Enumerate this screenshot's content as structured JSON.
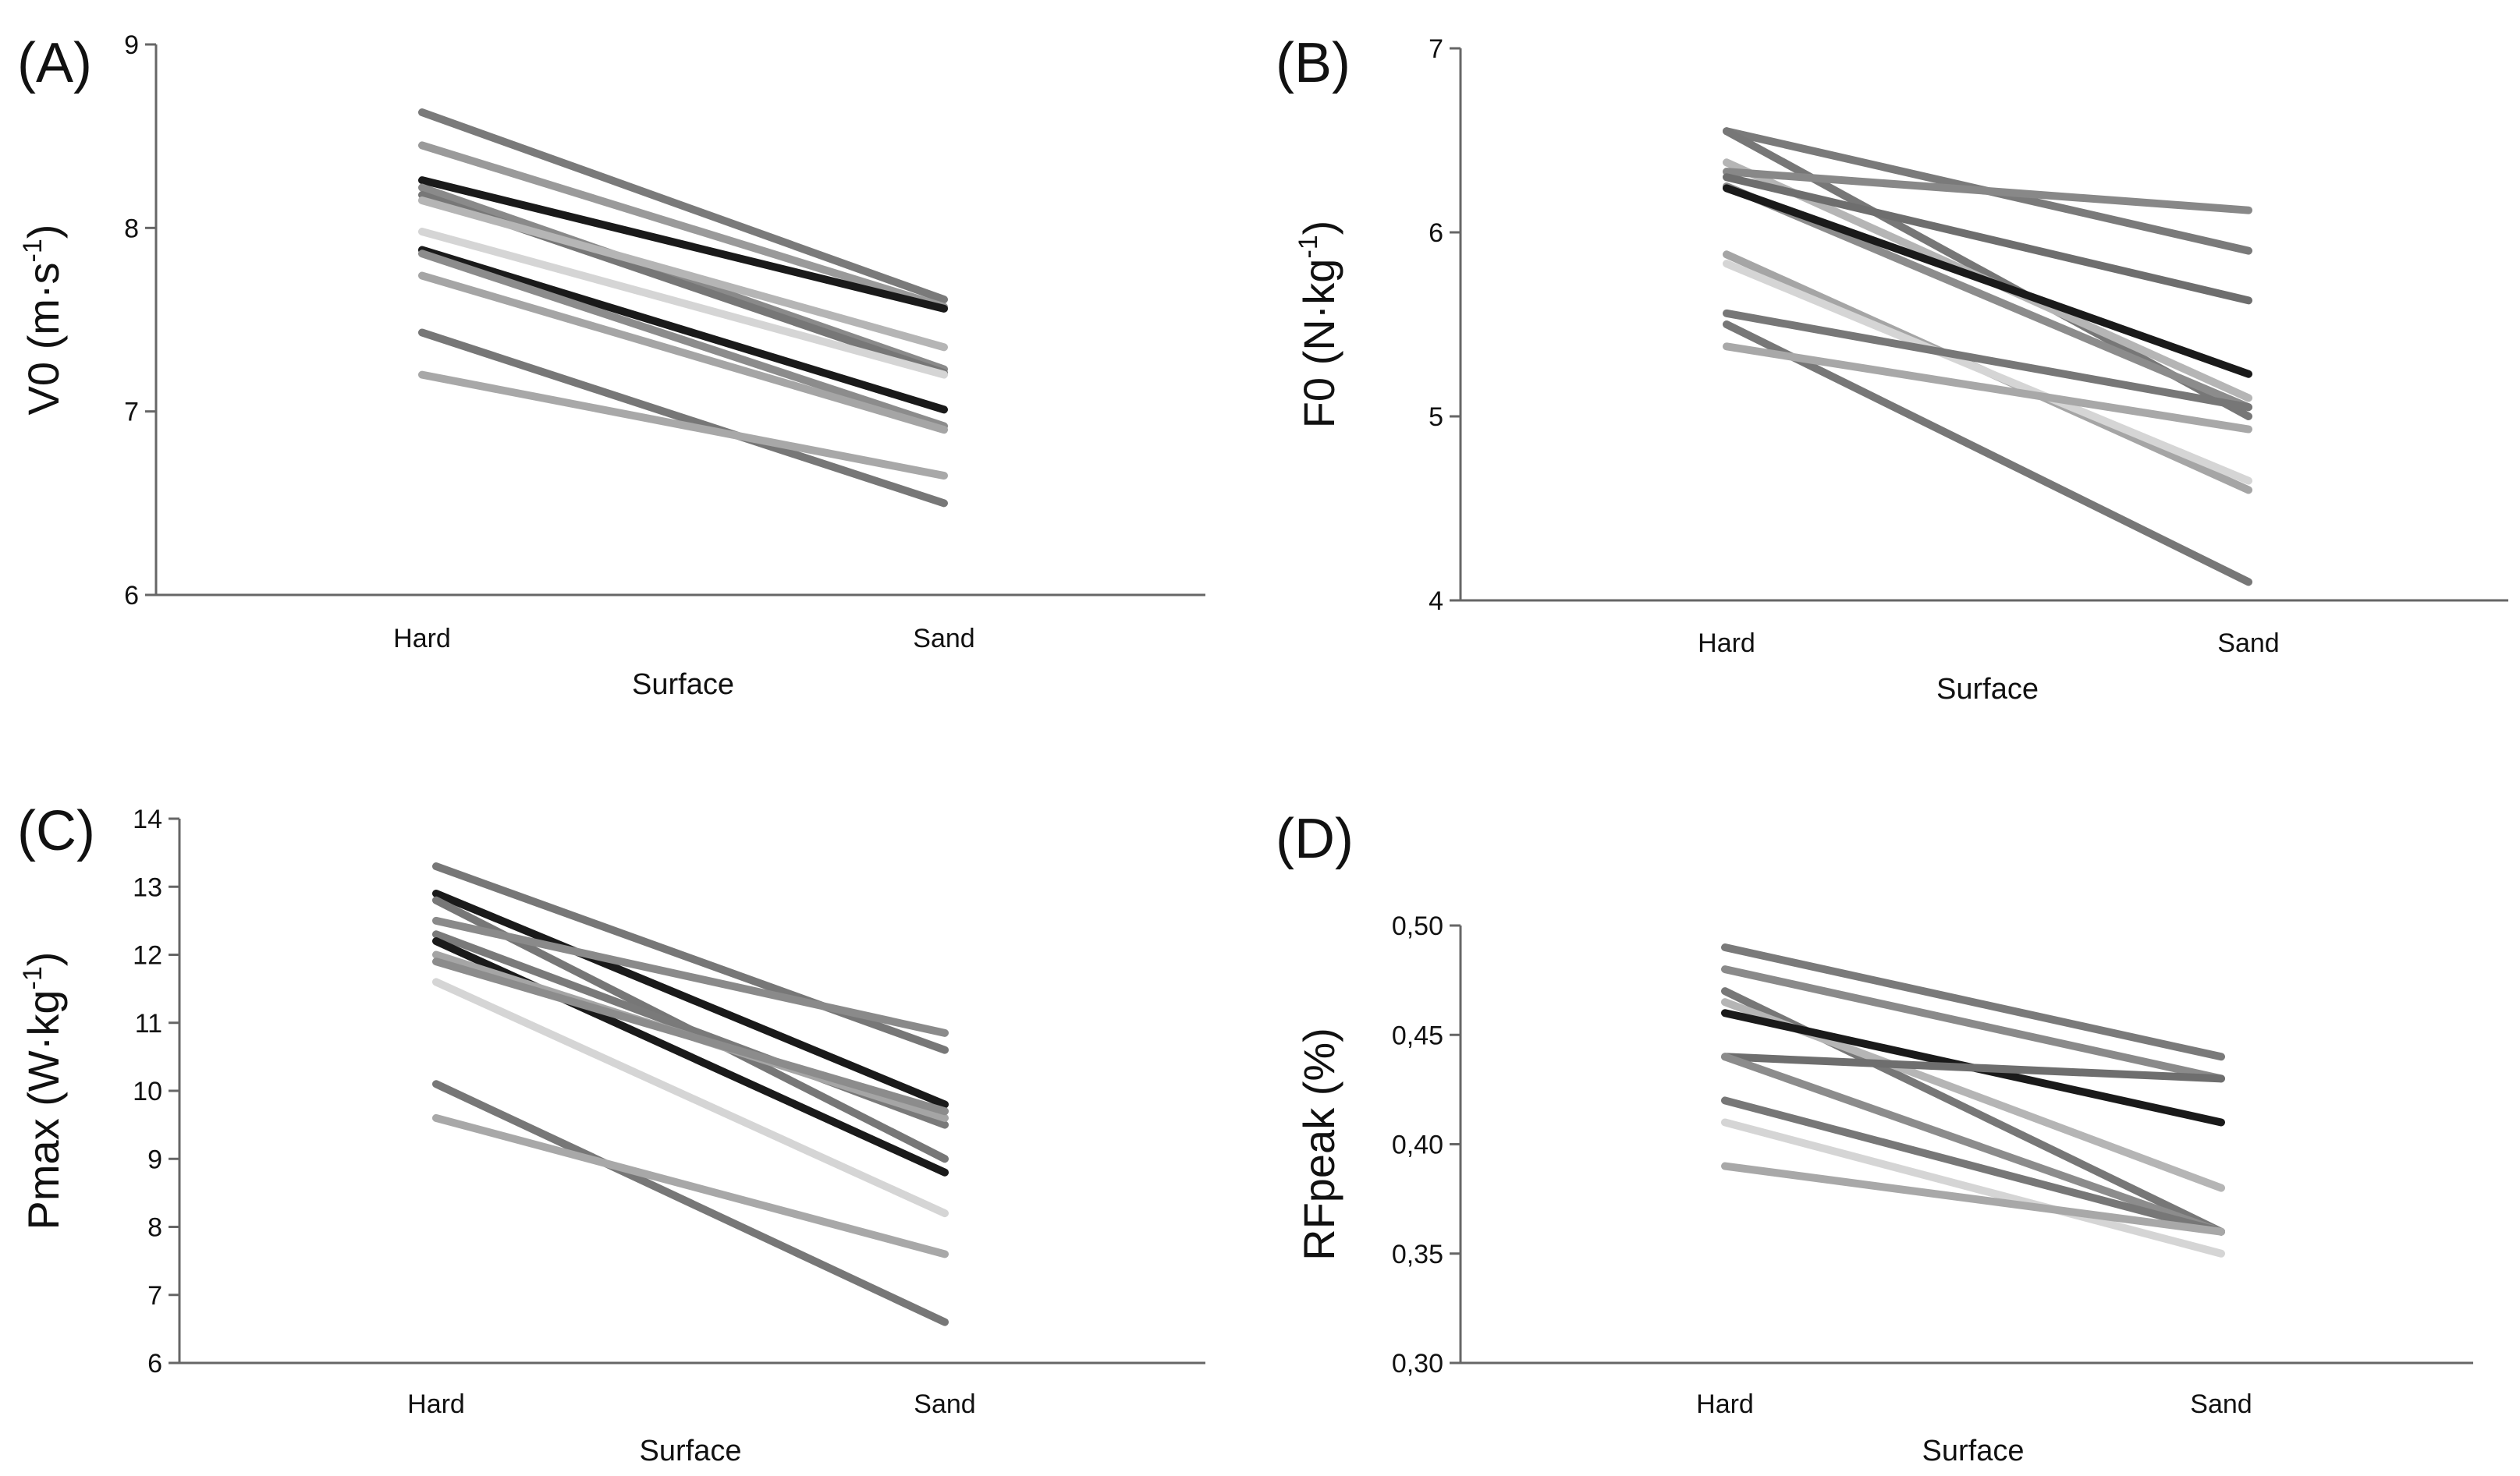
{
  "chart_data": [
    {
      "type": "line",
      "panel_label": "(A)",
      "ylabel": "V0 (m·s",
      "ylabel_sup": "-1",
      "ylabel_end": ")",
      "xlabel": "Surface",
      "categories": [
        "Hard",
        "Sand"
      ],
      "ylim": [
        6,
        9
      ],
      "yticks": [
        "6",
        "7",
        "8",
        "9"
      ],
      "ytick_values": [
        6,
        7,
        8,
        9
      ],
      "series": [
        {
          "values": [
            8.63,
            7.61
          ],
          "color": "#7a7a7a"
        },
        {
          "values": [
            8.45,
            7.57
          ],
          "color": "#9a9a9a"
        },
        {
          "values": [
            8.26,
            7.56
          ],
          "color": "#1a1a1a"
        },
        {
          "values": [
            8.22,
            7.23
          ],
          "color": "#8a8a8a"
        },
        {
          "values": [
            8.18,
            7.21
          ],
          "color": "#777777"
        },
        {
          "values": [
            8.15,
            7.35
          ],
          "color": "#b5b5b5"
        },
        {
          "values": [
            7.98,
            7.2
          ],
          "color": "#d5d5d5"
        },
        {
          "values": [
            7.88,
            7.01
          ],
          "color": "#1a1a1a"
        },
        {
          "values": [
            7.86,
            6.92
          ],
          "color": "#8c8c8c"
        },
        {
          "values": [
            7.74,
            6.9
          ],
          "color": "#a5a5a5"
        },
        {
          "values": [
            7.43,
            6.5
          ],
          "color": "#777777"
        },
        {
          "values": [
            7.2,
            6.65
          ],
          "color": "#a8a8a8"
        }
      ]
    },
    {
      "type": "line",
      "panel_label": "(B)",
      "ylabel": "F0 (N·kg",
      "ylabel_sup": "-1",
      "ylabel_end": ")",
      "xlabel": "Surface",
      "categories": [
        "Hard",
        "Sand"
      ],
      "ylim": [
        4,
        7
      ],
      "yticks": [
        "4",
        "5",
        "6",
        "7"
      ],
      "ytick_values": [
        4,
        5,
        6,
        7
      ],
      "series": [
        {
          "values": [
            6.55,
            5.9
          ],
          "color": "#7a7a7a"
        },
        {
          "values": [
            6.55,
            5.0
          ],
          "color": "#777777"
        },
        {
          "values": [
            6.38,
            5.1
          ],
          "color": "#b5b5b5"
        },
        {
          "values": [
            6.33,
            6.12
          ],
          "color": "#888888"
        },
        {
          "values": [
            6.3,
            5.63
          ],
          "color": "#6e6e6e"
        },
        {
          "values": [
            6.25,
            5.05
          ],
          "color": "#8c8c8c"
        },
        {
          "values": [
            6.24,
            5.23
          ],
          "color": "#1a1a1a"
        },
        {
          "values": [
            5.88,
            4.6
          ],
          "color": "#a5a5a5"
        },
        {
          "values": [
            5.83,
            4.65
          ],
          "color": "#d5d5d5"
        },
        {
          "values": [
            5.56,
            5.05
          ],
          "color": "#777777"
        },
        {
          "values": [
            5.5,
            4.1
          ],
          "color": "#777777"
        },
        {
          "values": [
            5.38,
            4.93
          ],
          "color": "#a8a8a8"
        }
      ]
    },
    {
      "type": "line",
      "panel_label": "(C)",
      "ylabel": "Pmax (W·kg",
      "ylabel_sup": "-1",
      "ylabel_end": ")",
      "xlabel": "Surface",
      "categories": [
        "Hard",
        "Sand"
      ],
      "ylim": [
        6,
        14
      ],
      "yticks": [
        "6",
        "7",
        "8",
        "9",
        "10",
        "11",
        "12",
        "13",
        "14"
      ],
      "ytick_values": [
        6,
        7,
        8,
        9,
        10,
        11,
        12,
        13,
        14
      ],
      "series": [
        {
          "values": [
            13.3,
            10.6
          ],
          "color": "#777777"
        },
        {
          "values": [
            12.9,
            9.8
          ],
          "color": "#1a1a1a"
        },
        {
          "values": [
            12.8,
            9.0
          ],
          "color": "#777777"
        },
        {
          "values": [
            12.5,
            10.85
          ],
          "color": "#8a8a8a"
        },
        {
          "values": [
            12.3,
            9.5
          ],
          "color": "#7a7a7a"
        },
        {
          "values": [
            12.2,
            8.8
          ],
          "color": "#1a1a1a"
        },
        {
          "values": [
            12.0,
            9.6
          ],
          "color": "#a5a5a5"
        },
        {
          "values": [
            11.9,
            9.7
          ],
          "color": "#8c8c8c"
        },
        {
          "values": [
            11.6,
            8.2
          ],
          "color": "#d5d5d5"
        },
        {
          "values": [
            10.1,
            6.6
          ],
          "color": "#777777"
        },
        {
          "values": [
            9.6,
            7.6
          ],
          "color": "#a8a8a8"
        }
      ]
    },
    {
      "type": "line",
      "panel_label": "(D)",
      "ylabel": "RFpeak (%)",
      "ylabel_sup": "",
      "ylabel_end": "",
      "xlabel": "Surface",
      "categories": [
        "Hard",
        "Sand"
      ],
      "ylim": [
        0.3,
        0.5
      ],
      "yticks": [
        "0,30",
        "0,35",
        "0,40",
        "0,45",
        "0,50"
      ],
      "ytick_values": [
        0.3,
        0.35,
        0.4,
        0.45,
        0.5
      ],
      "series": [
        {
          "values": [
            0.49,
            0.44
          ],
          "color": "#7a7a7a"
        },
        {
          "values": [
            0.48,
            0.43
          ],
          "color": "#8a8a8a"
        },
        {
          "values": [
            0.47,
            0.36
          ],
          "color": "#777777"
        },
        {
          "values": [
            0.465,
            0.38
          ],
          "color": "#b5b5b5"
        },
        {
          "values": [
            0.46,
            0.41
          ],
          "color": "#1a1a1a"
        },
        {
          "values": [
            0.44,
            0.43
          ],
          "color": "#6e6e6e"
        },
        {
          "values": [
            0.44,
            0.36
          ],
          "color": "#8c8c8c"
        },
        {
          "values": [
            0.42,
            0.36
          ],
          "color": "#777777"
        },
        {
          "values": [
            0.41,
            0.35
          ],
          "color": "#d5d5d5"
        },
        {
          "values": [
            0.39,
            0.36
          ],
          "color": "#a8a8a8"
        }
      ]
    }
  ]
}
